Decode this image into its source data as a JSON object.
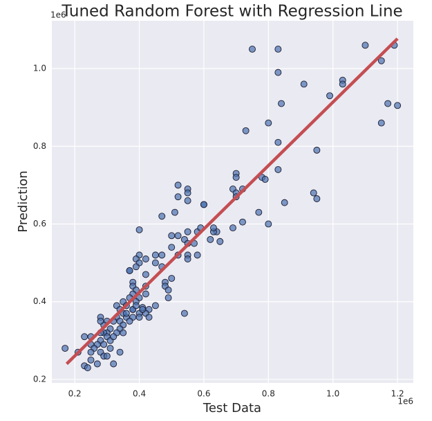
{
  "chart_data": {
    "type": "scatter",
    "title": "Tuned Random Forest with Regression Line",
    "x_label": "Test Data",
    "y_label": "Prediction",
    "x_offset_label": "1e6",
    "y_offset_label": "1e6",
    "xlim": [
      0.129,
      1.249
    ],
    "ylim": [
      0.191,
      1.123
    ],
    "xticks": [
      0.2,
      0.4,
      0.6,
      0.8,
      {
        "value": 1,
        "label": "1.0"
      },
      1.2
    ],
    "yticks": [
      0.2,
      0.4,
      0.6,
      0.8,
      {
        "value": 1,
        "label": "1.0"
      }
    ],
    "grid": true,
    "color": "#4c72b0",
    "x": [
      0.75,
      0.83,
      0.83,
      1.1,
      1.19,
      1.15,
      1.03,
      1.03,
      0.99,
      0.91,
      0.84,
      1.17,
      1.2,
      1.15,
      0.8,
      0.73,
      0.83,
      0.95,
      0.7,
      0.7,
      0.83,
      0.78,
      0.79,
      0.69,
      0.72,
      0.7,
      0.7,
      0.94,
      0.95,
      0.85,
      0.77,
      0.72,
      0.8,
      0.69,
      0.64,
      0.63,
      0.62,
      0.65,
      0.6,
      0.6,
      0.52,
      0.55,
      0.55,
      0.52,
      0.55,
      0.51,
      0.47,
      0.52,
      0.5,
      0.55,
      0.54,
      0.58,
      0.59,
      0.55,
      0.57,
      0.5,
      0.52,
      0.55,
      0.58,
      0.55,
      0.45,
      0.47,
      0.47,
      0.45,
      0.4,
      0.4,
      0.39,
      0.42,
      0.4,
      0.39,
      0.37,
      0.37,
      0.42,
      0.5,
      0.42,
      0.48,
      0.48,
      0.49,
      0.38,
      0.38,
      0.39,
      0.38,
      0.42,
      0.4,
      0.37,
      0.39,
      0.35,
      0.36,
      0.41,
      0.43,
      0.45,
      0.49,
      0.38,
      0.4,
      0.42,
      0.43,
      0.4,
      0.36,
      0.38,
      0.33,
      0.34,
      0.35,
      0.33,
      0.34,
      0.35,
      0.32,
      0.34,
      0.35,
      0.33,
      0.31,
      0.3,
      0.29,
      0.28,
      0.28,
      0.3,
      0.29,
      0.3,
      0.31,
      0.28,
      0.28,
      0.29,
      0.27,
      0.25,
      0.25,
      0.23,
      0.26,
      0.25,
      0.25,
      0.28,
      0.29,
      0.3,
      0.27,
      0.23,
      0.24,
      0.21,
      0.17,
      0.34,
      0.32,
      0.54,
      0.38,
      0.36,
      0.41,
      0.32,
      0.31,
      0.37,
      0.39,
      0.63
    ],
    "values": [
      1.05,
      1.05,
      0.99,
      1.06,
      1.06,
      1.02,
      0.97,
      0.96,
      0.93,
      0.96,
      0.91,
      0.91,
      0.905,
      0.86,
      0.86,
      0.84,
      0.81,
      0.79,
      0.73,
      0.72,
      0.74,
      0.72,
      0.715,
      0.69,
      0.69,
      0.68,
      0.67,
      0.68,
      0.665,
      0.655,
      0.63,
      0.605,
      0.6,
      0.59,
      0.58,
      0.58,
      0.56,
      0.555,
      0.65,
      0.65,
      0.7,
      0.69,
      0.68,
      0.67,
      0.66,
      0.63,
      0.62,
      0.57,
      0.57,
      0.58,
      0.56,
      0.58,
      0.59,
      0.55,
      0.55,
      0.54,
      0.52,
      0.52,
      0.52,
      0.51,
      0.52,
      0.52,
      0.49,
      0.5,
      0.585,
      0.52,
      0.51,
      0.51,
      0.5,
      0.49,
      0.48,
      0.48,
      0.47,
      0.46,
      0.44,
      0.45,
      0.44,
      0.43,
      0.45,
      0.44,
      0.43,
      0.42,
      0.42,
      0.41,
      0.41,
      0.4,
      0.4,
      0.39,
      0.385,
      0.38,
      0.39,
      0.41,
      0.38,
      0.37,
      0.37,
      0.36,
      0.36,
      0.36,
      0.36,
      0.39,
      0.38,
      0.37,
      0.36,
      0.35,
      0.34,
      0.35,
      0.33,
      0.32,
      0.32,
      0.33,
      0.35,
      0.34,
      0.36,
      0.35,
      0.32,
      0.32,
      0.31,
      0.3,
      0.32,
      0.3,
      0.29,
      0.29,
      0.31,
      0.29,
      0.31,
      0.28,
      0.27,
      0.25,
      0.27,
      0.26,
      0.26,
      0.24,
      0.235,
      0.23,
      0.27,
      0.28,
      0.27,
      0.24,
      0.37,
      0.38,
      0.37,
      0.38,
      0.31,
      0.28,
      0.35,
      0.39,
      0.59
    ],
    "regression": {
      "x": [
        0.175,
        1.2
      ],
      "values": [
        0.24,
        1.077
      ],
      "color": "#c44e52"
    }
  }
}
